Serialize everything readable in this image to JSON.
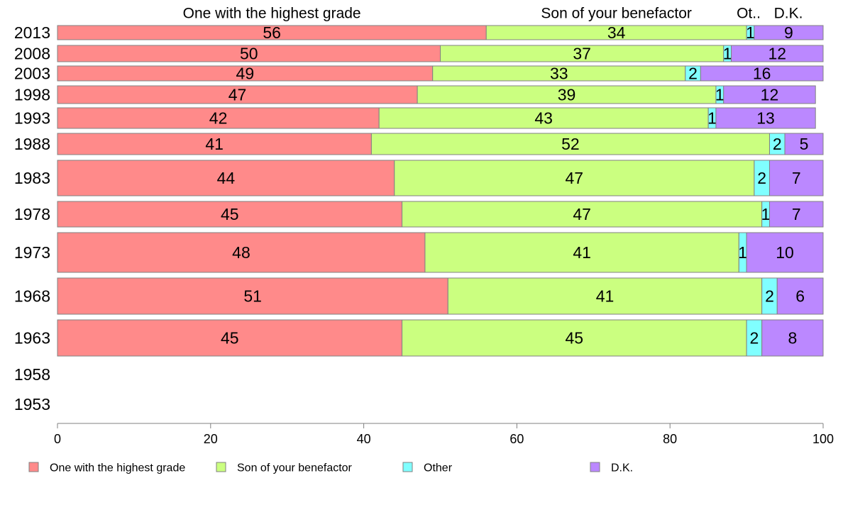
{
  "chart_data": {
    "type": "bar",
    "orientation": "horizontal",
    "stacked": true,
    "categories": [
      "2013",
      "2008",
      "2003",
      "1998",
      "1993",
      "1988",
      "1983",
      "1978",
      "1973",
      "1968",
      "1963",
      "1958",
      "1953"
    ],
    "series": [
      {
        "name": "One with the highest grade",
        "short": "One with the highest grade",
        "color": "#ff8a8a",
        "values": [
          56,
          50,
          49,
          47,
          42,
          41,
          44,
          45,
          48,
          51,
          45,
          null,
          null
        ]
      },
      {
        "name": "Son of your benefactor",
        "short": "Son of your benefactor",
        "color": "#cbff80",
        "values": [
          34,
          37,
          33,
          39,
          43,
          52,
          47,
          47,
          41,
          41,
          45,
          null,
          null
        ]
      },
      {
        "name": "Other",
        "short": "Ot..",
        "color": "#80ffff",
        "values": [
          1,
          1,
          2,
          1,
          1,
          2,
          2,
          1,
          1,
          2,
          2,
          null,
          null
        ]
      },
      {
        "name": "D.K.",
        "short": "D.K.",
        "color": "#bb88ff",
        "values": [
          9,
          12,
          16,
          12,
          13,
          5,
          7,
          7,
          10,
          6,
          8,
          null,
          null
        ]
      }
    ],
    "xlim": [
      0,
      100
    ],
    "xticks": [
      0,
      20,
      40,
      60,
      80,
      100
    ],
    "grid": false,
    "legend_position": "bottom"
  }
}
